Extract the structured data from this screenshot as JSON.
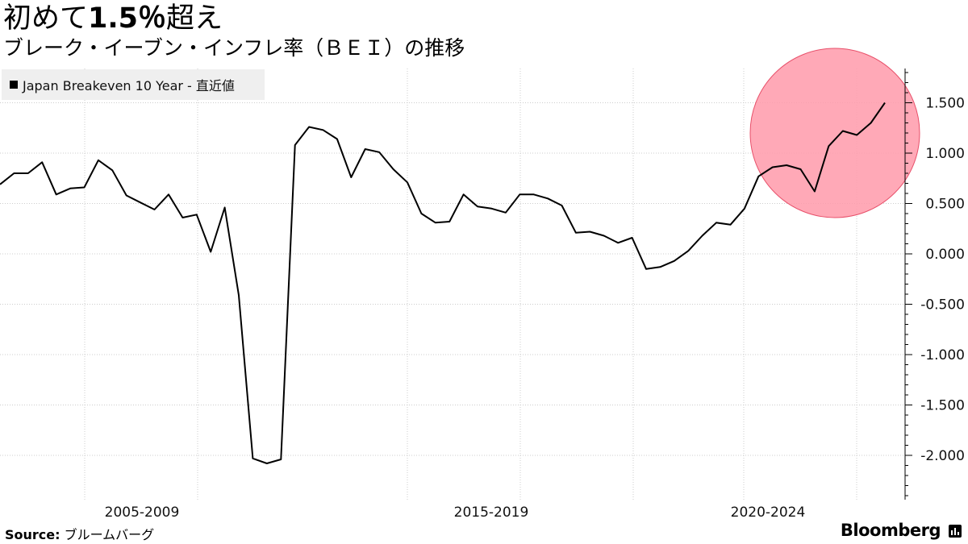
{
  "header": {
    "title_prefix": "初めて",
    "title_num": "1.5％",
    "title_suffix": "超え",
    "subtitle": "ブレーク・イーブン・インフレ率（ＢＥＩ）の推移"
  },
  "legend": {
    "label": "Japan Breakeven 10 Year - 直近値"
  },
  "footer": {
    "source_label": "Source:",
    "source_value": "ブルームバーグ",
    "brand": "Bloomberg"
  },
  "colors": {
    "line": "#000000",
    "highlight_fill": "#ff9aaa",
    "highlight_stroke": "#e8506a",
    "grid": "#cccccc"
  },
  "chart_data": {
    "type": "line",
    "x_tick_labels": [
      "2005-2009",
      "2015-2019",
      "2020-2024"
    ],
    "y_tick_labels": [
      "1.500",
      "1.000",
      "0.500",
      "0.000",
      "-0.500",
      "-1.000",
      "-1.500",
      "-2.000"
    ],
    "y_ticks": [
      1.5,
      1.0,
      0.5,
      0.0,
      -0.5,
      -1.0,
      -1.5,
      -2.0
    ],
    "ylim": [
      -2.4,
      1.85
    ],
    "grid": true,
    "legend_position": "top-left",
    "annotation": "red circle highlighting the most recent values",
    "series": [
      {
        "name": "Japan Breakeven 10 Year - 直近値",
        "values": [
          0.69,
          0.8,
          0.8,
          0.91,
          0.59,
          0.65,
          0.66,
          0.93,
          0.83,
          0.58,
          0.51,
          0.44,
          0.59,
          0.36,
          0.39,
          0.02,
          0.46,
          -0.41,
          -2.03,
          -2.08,
          -2.04,
          1.08,
          1.26,
          1.23,
          1.14,
          0.76,
          1.04,
          1.01,
          0.84,
          0.71,
          0.4,
          0.31,
          0.32,
          0.59,
          0.47,
          0.45,
          0.41,
          0.59,
          0.59,
          0.55,
          0.48,
          0.21,
          0.22,
          0.18,
          0.11,
          0.16,
          -0.15,
          -0.13,
          -0.07,
          0.03,
          0.18,
          0.31,
          0.29,
          0.45,
          0.77,
          0.86,
          0.88,
          0.84,
          0.62,
          1.07,
          1.22,
          1.18,
          1.3,
          1.5
        ]
      }
    ]
  }
}
